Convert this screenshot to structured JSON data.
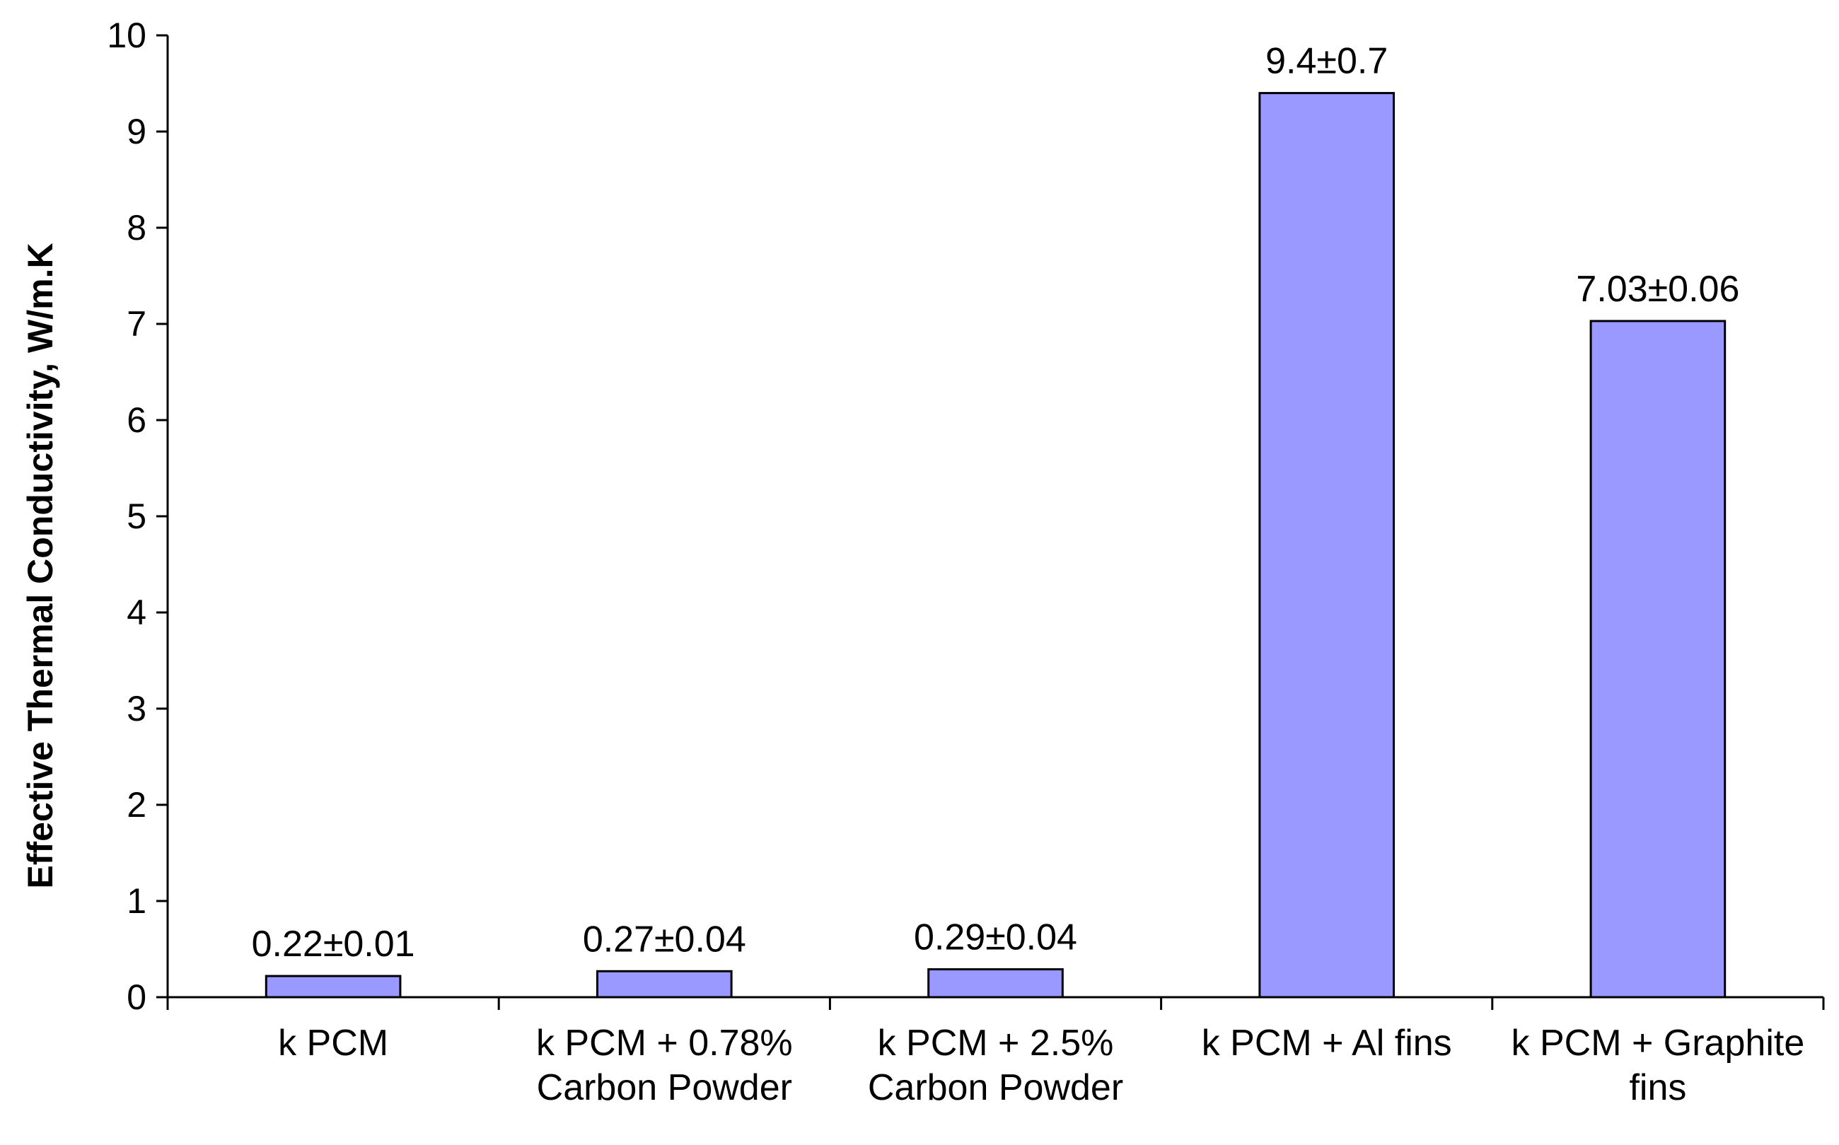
{
  "chart_data": {
    "type": "bar",
    "title": "",
    "xlabel": "",
    "ylabel": "Effective Thermal Conductivity, W/m.K",
    "ylim": [
      0,
      10
    ],
    "yticks": [
      0,
      1,
      2,
      3,
      4,
      5,
      6,
      7,
      8,
      9,
      10
    ],
    "grid": false,
    "legend": "none",
    "bar_color": "#9999ff",
    "bar_edge_color": "#000000",
    "categories": [
      [
        "k PCM"
      ],
      [
        "k PCM + 0.78%",
        "Carbon Powder"
      ],
      [
        "k PCM + 2.5%",
        "Carbon Powder"
      ],
      [
        "k PCM + Al fins"
      ],
      [
        "k PCM + Graphite",
        "fins"
      ]
    ],
    "values": [
      0.22,
      0.27,
      0.29,
      9.4,
      7.03
    ],
    "data_labels": [
      "0.22±0.01",
      "0.27±0.04",
      "0.29±0.04",
      "9.4±0.7",
      "7.03±0.06"
    ]
  }
}
